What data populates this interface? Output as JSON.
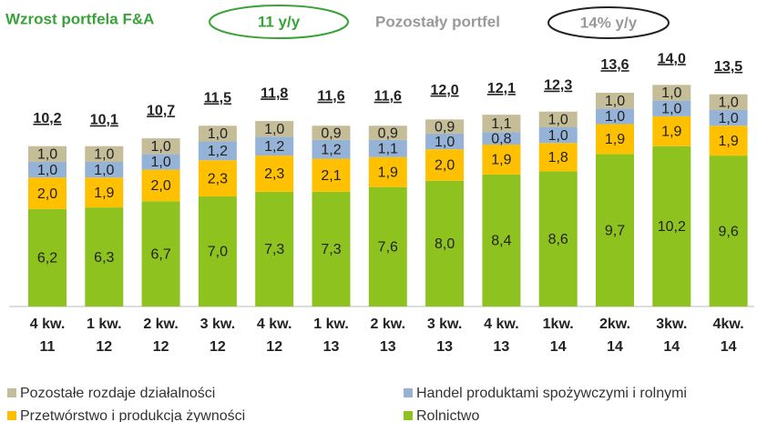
{
  "header": {
    "left_title": "Wzrost portfela F&A",
    "left_badge": "11 y/y",
    "right_title": "Pozostały portfel",
    "right_badge": "14% y/y"
  },
  "chart_data": {
    "type": "stacked_bar",
    "categories": [
      [
        "4 kw.",
        "11"
      ],
      [
        "1 kw.",
        "12"
      ],
      [
        "2 kw.",
        "12"
      ],
      [
        "3 kw.",
        "12"
      ],
      [
        "4 kw.",
        "12"
      ],
      [
        "1 kw.",
        "13"
      ],
      [
        "2 kw.",
        "13"
      ],
      [
        "3 kw.",
        "13"
      ],
      [
        "4 kw.",
        "13"
      ],
      [
        "1kw.",
        "14"
      ],
      [
        "2kw.",
        "14"
      ],
      [
        "3kw.",
        "14"
      ],
      [
        "4kw.",
        "14"
      ]
    ],
    "ylim": [
      0,
      19.5
    ],
    "series": [
      {
        "name": "Rolnictwo",
        "color": "#8dc21f",
        "values": [
          6.2,
          6.3,
          6.7,
          7.0,
          7.3,
          7.3,
          7.6,
          8.0,
          8.4,
          8.6,
          9.7,
          10.2,
          9.6
        ],
        "value_labels": [
          "6,2",
          "6,3",
          "6,7",
          "7,0",
          "7,3",
          "7,3",
          "7,6",
          "8,0",
          "8,4",
          "8,6",
          "9,7",
          "10,2",
          "9,6"
        ]
      },
      {
        "name": "Przetwórstwo i produkcja żywności",
        "color": "#ffc000",
        "values": [
          2.0,
          1.9,
          2.0,
          2.3,
          2.3,
          2.1,
          1.9,
          2.0,
          1.9,
          1.8,
          1.9,
          1.9,
          1.9
        ],
        "value_labels": [
          "2,0",
          "1,9",
          "2,0",
          "2,3",
          "2,3",
          "2,1",
          "1,9",
          "2,0",
          "1,9",
          "1,8",
          "1,9",
          "1,9",
          "1,9"
        ]
      },
      {
        "name": "Handel produktami spożywczymi i rolnymi",
        "color": "#95b3d7",
        "values": [
          1.0,
          1.0,
          1.0,
          1.2,
          1.2,
          1.2,
          1.1,
          1.0,
          0.8,
          1.0,
          1.0,
          1.0,
          1.0
        ],
        "value_labels": [
          "1,0",
          "1,0",
          "1,0",
          "1,2",
          "1,2",
          "1,2",
          "1,1",
          "1,0",
          "0,8",
          "1,0",
          "1,0",
          "1,0",
          "1,0"
        ]
      },
      {
        "name": "Pozostałe rozdaje działalności",
        "color": "#c4bd97",
        "values": [
          1.0,
          1.0,
          1.0,
          1.0,
          1.0,
          0.9,
          0.9,
          0.9,
          1.1,
          1.0,
          1.0,
          1.0,
          1.0
        ],
        "value_labels": [
          "1,0",
          "1,0",
          "1,0",
          "1,0",
          "1,0",
          "0,9",
          "0,9",
          "0,9",
          "1,1",
          "1,0",
          "1,0",
          "1,0",
          "1,0"
        ]
      }
    ],
    "totals": {
      "values": [
        10.2,
        10.1,
        10.7,
        11.5,
        11.8,
        11.6,
        11.6,
        12.0,
        12.1,
        12.3,
        13.6,
        14.0,
        13.5
      ],
      "value_labels": [
        "10,2",
        "10,1",
        "10,7",
        "11,5",
        "11,8",
        "11,6",
        "11,6",
        "12,0",
        "12,1",
        "12,3",
        "13,6",
        "14,0",
        "13,5"
      ]
    }
  }
}
